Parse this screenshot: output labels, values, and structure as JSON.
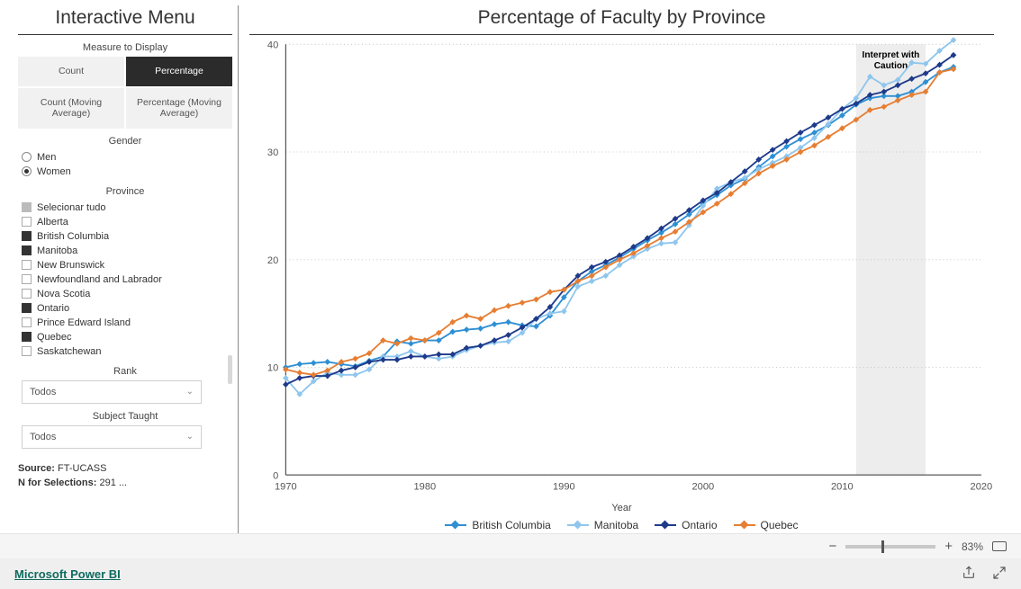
{
  "sidebar": {
    "title": "Interactive Menu",
    "measure_heading": "Measure to Display",
    "measure_buttons": [
      {
        "label": "Count",
        "selected": false
      },
      {
        "label": "Percentage",
        "selected": true
      },
      {
        "label": "Count (Moving Average)",
        "selected": false
      },
      {
        "label": "Percentage (Moving Average)",
        "selected": false
      }
    ],
    "gender_heading": "Gender",
    "gender_options": [
      {
        "label": "Men",
        "selected": false
      },
      {
        "label": "Women",
        "selected": true
      }
    ],
    "province_heading": "Province",
    "province_options": [
      {
        "label": "Selecionar tudo",
        "state": "indeterminate"
      },
      {
        "label": "Alberta",
        "state": "off"
      },
      {
        "label": "British Columbia",
        "state": "on"
      },
      {
        "label": "Manitoba",
        "state": "on"
      },
      {
        "label": "New Brunswick",
        "state": "off"
      },
      {
        "label": "Newfoundland and Labrador",
        "state": "off"
      },
      {
        "label": "Nova Scotia",
        "state": "off"
      },
      {
        "label": "Ontario",
        "state": "on"
      },
      {
        "label": "Prince Edward Island",
        "state": "off"
      },
      {
        "label": "Quebec",
        "state": "on"
      },
      {
        "label": "Saskatchewan",
        "state": "off"
      }
    ],
    "rank_heading": "Rank",
    "rank_value": "Todos",
    "subject_heading": "Subject Taught",
    "subject_value": "Todos",
    "source_label": "Source:",
    "source_value": "FT-UCASS",
    "n_label": "N for Selections:",
    "n_value": "291 ..."
  },
  "chart": {
    "title": "Percentage of Faculty by Province",
    "x_label": "Year",
    "x_min": 1970,
    "x_max": 2020,
    "y_min": 0,
    "y_max": 40,
    "x_ticks": [
      1970,
      1980,
      1990,
      2000,
      2010,
      2020
    ],
    "y_ticks": [
      0,
      10,
      20,
      30,
      40
    ],
    "caution_label_line1": "Interpret with",
    "caution_label_line2": "Caution",
    "caution_x_start": 2011,
    "caution_x_end": 2016,
    "grid_color": "#c8c8c8",
    "axis_color": "#333333",
    "background": "#ffffff",
    "legend": [
      {
        "label": "British Columbia",
        "color": "#2f8fd3"
      },
      {
        "label": "Manitoba",
        "color": "#8fc6ed"
      },
      {
        "label": "Ontario",
        "color": "#1e3a8a"
      },
      {
        "label": "Quebec",
        "color": "#e67e33"
      }
    ],
    "series": {
      "British Columbia": {
        "color": "#2f8fd3",
        "points": [
          [
            1970,
            10.0
          ],
          [
            1971,
            10.3
          ],
          [
            1972,
            10.4
          ],
          [
            1973,
            10.5
          ],
          [
            1974,
            10.3
          ],
          [
            1975,
            10.1
          ],
          [
            1976,
            10.6
          ],
          [
            1977,
            11.0
          ],
          [
            1978,
            12.4
          ],
          [
            1979,
            12.2
          ],
          [
            1980,
            12.5
          ],
          [
            1981,
            12.5
          ],
          [
            1982,
            13.3
          ],
          [
            1983,
            13.5
          ],
          [
            1984,
            13.6
          ],
          [
            1985,
            14.0
          ],
          [
            1986,
            14.2
          ],
          [
            1987,
            13.9
          ],
          [
            1988,
            13.8
          ],
          [
            1989,
            14.8
          ],
          [
            1990,
            16.5
          ],
          [
            1991,
            18.0
          ],
          [
            1992,
            18.9
          ],
          [
            1993,
            19.5
          ],
          [
            1994,
            20.2
          ],
          [
            1995,
            21.0
          ],
          [
            1996,
            21.8
          ],
          [
            1997,
            22.5
          ],
          [
            1998,
            23.3
          ],
          [
            1999,
            24.2
          ],
          [
            2000,
            25.2
          ],
          [
            2001,
            26.0
          ],
          [
            2002,
            26.9
          ],
          [
            2003,
            27.5
          ],
          [
            2004,
            28.6
          ],
          [
            2005,
            29.6
          ],
          [
            2006,
            30.5
          ],
          [
            2007,
            31.2
          ],
          [
            2008,
            31.8
          ],
          [
            2009,
            32.5
          ],
          [
            2010,
            33.4
          ],
          [
            2011,
            34.4
          ],
          [
            2012,
            35.0
          ],
          [
            2013,
            35.2
          ],
          [
            2014,
            35.2
          ],
          [
            2015,
            35.6
          ],
          [
            2016,
            36.5
          ],
          [
            2017,
            37.4
          ],
          [
            2018,
            37.9
          ]
        ]
      },
      "Manitoba": {
        "color": "#8fc6ed",
        "points": [
          [
            1970,
            9.0
          ],
          [
            1971,
            7.5
          ],
          [
            1972,
            8.7
          ],
          [
            1973,
            9.5
          ],
          [
            1974,
            9.3
          ],
          [
            1975,
            9.3
          ],
          [
            1976,
            9.8
          ],
          [
            1977,
            11.0
          ],
          [
            1978,
            11.0
          ],
          [
            1979,
            11.5
          ],
          [
            1980,
            11.0
          ],
          [
            1981,
            10.8
          ],
          [
            1982,
            11.0
          ],
          [
            1983,
            11.6
          ],
          [
            1984,
            12.0
          ],
          [
            1985,
            12.3
          ],
          [
            1986,
            12.4
          ],
          [
            1987,
            13.2
          ],
          [
            1988,
            14.5
          ],
          [
            1989,
            15.0
          ],
          [
            1990,
            15.2
          ],
          [
            1991,
            17.5
          ],
          [
            1992,
            18.0
          ],
          [
            1993,
            18.5
          ],
          [
            1994,
            19.5
          ],
          [
            1995,
            20.3
          ],
          [
            1996,
            21.0
          ],
          [
            1997,
            21.5
          ],
          [
            1998,
            21.6
          ],
          [
            1999,
            23.2
          ],
          [
            2000,
            25.0
          ],
          [
            2001,
            26.6
          ],
          [
            2002,
            27.2
          ],
          [
            2003,
            27.6
          ],
          [
            2004,
            28.4
          ],
          [
            2005,
            29.0
          ],
          [
            2006,
            29.6
          ],
          [
            2007,
            30.4
          ],
          [
            2008,
            31.3
          ],
          [
            2009,
            32.6
          ],
          [
            2010,
            34.0
          ],
          [
            2011,
            35.0
          ],
          [
            2012,
            37.0
          ],
          [
            2013,
            36.2
          ],
          [
            2014,
            36.7
          ],
          [
            2015,
            38.3
          ],
          [
            2016,
            38.2
          ],
          [
            2017,
            39.4
          ],
          [
            2018,
            40.4
          ]
        ]
      },
      "Ontario": {
        "color": "#1e3a8a",
        "points": [
          [
            1970,
            8.4
          ],
          [
            1971,
            9.0
          ],
          [
            1972,
            9.2
          ],
          [
            1973,
            9.2
          ],
          [
            1974,
            9.7
          ],
          [
            1975,
            10.0
          ],
          [
            1976,
            10.5
          ],
          [
            1977,
            10.7
          ],
          [
            1978,
            10.7
          ],
          [
            1979,
            11.0
          ],
          [
            1980,
            11.0
          ],
          [
            1981,
            11.2
          ],
          [
            1982,
            11.2
          ],
          [
            1983,
            11.8
          ],
          [
            1984,
            12.0
          ],
          [
            1985,
            12.5
          ],
          [
            1986,
            13.0
          ],
          [
            1987,
            13.7
          ],
          [
            1988,
            14.5
          ],
          [
            1989,
            15.6
          ],
          [
            1990,
            17.2
          ],
          [
            1991,
            18.5
          ],
          [
            1992,
            19.3
          ],
          [
            1993,
            19.8
          ],
          [
            1994,
            20.4
          ],
          [
            1995,
            21.2
          ],
          [
            1996,
            22.0
          ],
          [
            1997,
            22.9
          ],
          [
            1998,
            23.8
          ],
          [
            1999,
            24.6
          ],
          [
            2000,
            25.5
          ],
          [
            2001,
            26.2
          ],
          [
            2002,
            27.2
          ],
          [
            2003,
            28.2
          ],
          [
            2004,
            29.3
          ],
          [
            2005,
            30.2
          ],
          [
            2006,
            31.0
          ],
          [
            2007,
            31.8
          ],
          [
            2008,
            32.5
          ],
          [
            2009,
            33.2
          ],
          [
            2010,
            34.0
          ],
          [
            2011,
            34.5
          ],
          [
            2012,
            35.3
          ],
          [
            2013,
            35.6
          ],
          [
            2014,
            36.2
          ],
          [
            2015,
            36.8
          ],
          [
            2016,
            37.3
          ],
          [
            2017,
            38.1
          ],
          [
            2018,
            39.0
          ]
        ]
      },
      "Quebec": {
        "color": "#e67e33",
        "points": [
          [
            1970,
            9.8
          ],
          [
            1971,
            9.5
          ],
          [
            1972,
            9.3
          ],
          [
            1973,
            9.7
          ],
          [
            1974,
            10.5
          ],
          [
            1975,
            10.8
          ],
          [
            1976,
            11.3
          ],
          [
            1977,
            12.5
          ],
          [
            1978,
            12.2
          ],
          [
            1979,
            12.7
          ],
          [
            1980,
            12.5
          ],
          [
            1981,
            13.2
          ],
          [
            1982,
            14.2
          ],
          [
            1983,
            14.8
          ],
          [
            1984,
            14.5
          ],
          [
            1985,
            15.3
          ],
          [
            1986,
            15.7
          ],
          [
            1987,
            16.0
          ],
          [
            1988,
            16.3
          ],
          [
            1989,
            17.0
          ],
          [
            1990,
            17.2
          ],
          [
            1991,
            18.0
          ],
          [
            1992,
            18.5
          ],
          [
            1993,
            19.3
          ],
          [
            1994,
            20.0
          ],
          [
            1995,
            20.6
          ],
          [
            1996,
            21.3
          ],
          [
            1997,
            22.0
          ],
          [
            1998,
            22.6
          ],
          [
            1999,
            23.5
          ],
          [
            2000,
            24.4
          ],
          [
            2001,
            25.2
          ],
          [
            2002,
            26.1
          ],
          [
            2003,
            27.1
          ],
          [
            2004,
            28.0
          ],
          [
            2005,
            28.7
          ],
          [
            2006,
            29.3
          ],
          [
            2007,
            30.0
          ],
          [
            2008,
            30.6
          ],
          [
            2009,
            31.4
          ],
          [
            2010,
            32.2
          ],
          [
            2011,
            33.0
          ],
          [
            2012,
            33.9
          ],
          [
            2013,
            34.2
          ],
          [
            2014,
            34.8
          ],
          [
            2015,
            35.3
          ],
          [
            2016,
            35.6
          ],
          [
            2017,
            37.4
          ],
          [
            2018,
            37.7
          ]
        ]
      }
    }
  },
  "zoom": {
    "minus": "−",
    "plus": "+",
    "value": "83%"
  },
  "brand": {
    "link_label": "Microsoft Power BI"
  }
}
